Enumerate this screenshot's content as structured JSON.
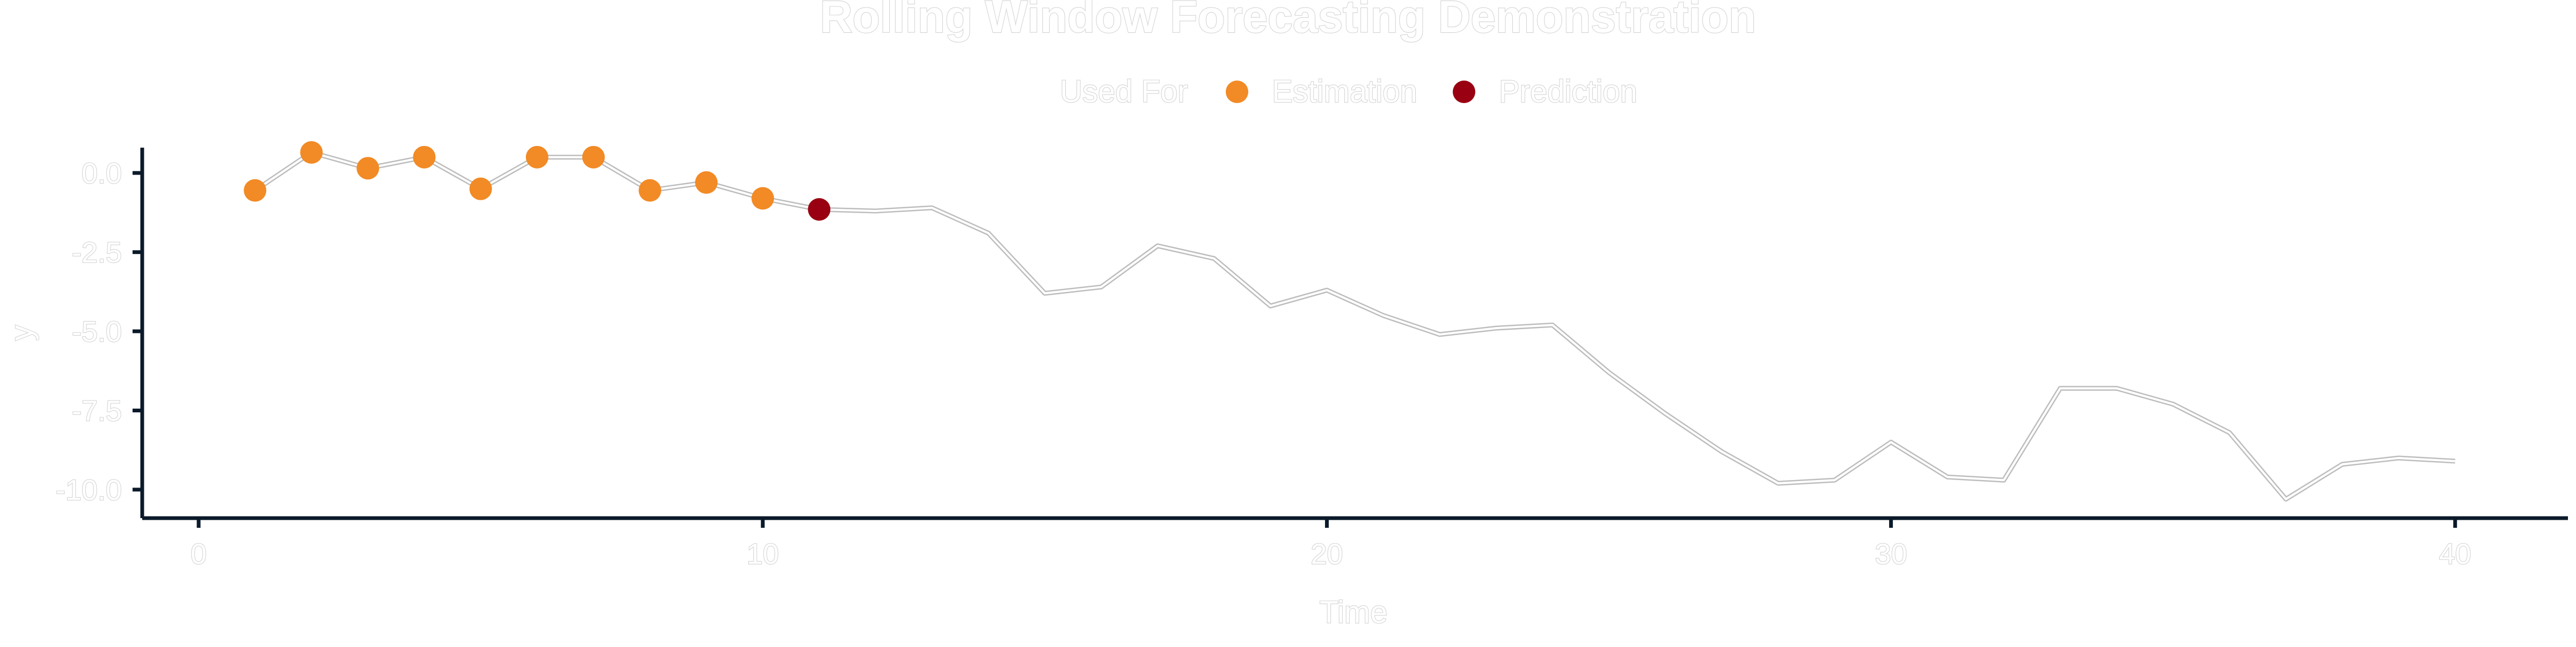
{
  "chart_data": {
    "type": "line",
    "title": "Rolling Window Forecasting Demonstration",
    "xlabel": "Time",
    "ylabel": "y",
    "xlim": [
      -1,
      42
    ],
    "ylim": [
      -10.9,
      0.8
    ],
    "x_ticks": [
      0,
      10,
      20,
      30,
      40
    ],
    "y_ticks": [
      0.0,
      -2.5,
      -5.0,
      -7.5,
      -10.0
    ],
    "x_tick_labels": [
      "0",
      "10",
      "20",
      "30",
      "40"
    ],
    "y_tick_labels": [
      "0.0",
      "-2.5",
      "-5.0",
      "-7.5",
      "-10.0"
    ],
    "grid": false,
    "legend": {
      "position": "top",
      "title": "Used For",
      "entries": [
        {
          "label": "Estimation",
          "color": "#F28A25"
        },
        {
          "label": "Prediction",
          "color": "#990012"
        }
      ]
    },
    "line_series": {
      "x": [
        1,
        2,
        3,
        4,
        5,
        6,
        7,
        8,
        9,
        10,
        11,
        12,
        13,
        14,
        15,
        16,
        17,
        18,
        19,
        20,
        21,
        22,
        23,
        24,
        25,
        26,
        27,
        28,
        29,
        30,
        31,
        32,
        33,
        34,
        35,
        36,
        37,
        38,
        39,
        40
      ],
      "y": [
        -0.55,
        0.65,
        0.15,
        0.5,
        -0.5,
        0.5,
        0.5,
        -0.55,
        -0.3,
        -0.8,
        -1.15,
        -1.2,
        -1.1,
        -1.9,
        -3.8,
        -3.6,
        -2.3,
        -2.7,
        -4.2,
        -3.7,
        -4.5,
        -5.1,
        -4.9,
        -4.8,
        -6.3,
        -7.6,
        -8.8,
        -9.8,
        -9.7,
        -8.5,
        -9.6,
        -9.7,
        -6.8,
        -6.8,
        -7.3,
        -8.2,
        -10.3,
        -9.2,
        -9.0,
        -9.1
      ],
      "stroke_color": "#bdbdbd"
    },
    "point_series": [
      {
        "name": "Estimation",
        "color": "#F28A25",
        "x": [
          1,
          2,
          3,
          4,
          5,
          6,
          7,
          8,
          9,
          10
        ],
        "y": [
          -0.55,
          0.65,
          0.15,
          0.5,
          -0.5,
          0.5,
          0.5,
          -0.55,
          -0.3,
          -0.8
        ]
      },
      {
        "name": "Prediction",
        "color": "#990012",
        "x": [
          11
        ],
        "y": [
          -1.15
        ]
      }
    ]
  }
}
